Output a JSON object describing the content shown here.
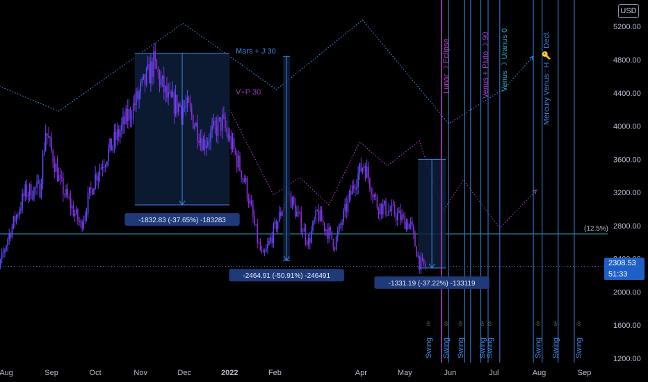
{
  "currency": "USD",
  "last_price": "2308.53",
  "countdown": "51:33",
  "level_label": "(12.5%)",
  "colors": {
    "background": "#000000",
    "candle_up": "#5b4dff",
    "candle_down": "#8d2bd6",
    "box_fill": "#0e1e3a",
    "measure_line": "#3f86e6",
    "vertical_line": "#2f6fc0",
    "eclipse_line": "#b43cc8",
    "dotted_blue": "#3f86e6",
    "dotted_purple": "#a23cc0",
    "level_line": "#2aa8b8"
  },
  "annotations": {
    "mars_j30": "Mars + J 30",
    "vp30": "V+P 30",
    "lunar_eclipse": "Lunar ☽ Eclipse",
    "venus_pluto": "Venus + Pluto ☽ 90",
    "venus_uranus": "Venus ☽ Uranus 0",
    "mercury_venus": "Mercury Venus : H 🔑 Decl.",
    "swing": "Swing",
    "swing_icon": "☃"
  },
  "measurements": [
    {
      "label": "-1832.83 (-37.65%) -183283"
    },
    {
      "label": "-2464.91 (-50.91%) -246491"
    },
    {
      "label": "-1331.19 (-37.22%) -133119"
    }
  ],
  "chart_data": {
    "type": "candlestick",
    "title": "",
    "xlabel": "",
    "ylabel": "",
    "ylim": [
      1150,
      5520
    ],
    "grid": false,
    "x_tick_labels": [
      "Aug",
      "Sep",
      "Oct",
      "Nov",
      "Dec",
      "2022",
      "Feb",
      "Apr",
      "May",
      "Jun",
      "Jul",
      "Aug",
      "Sep"
    ],
    "y_tick_labels": [
      "5200.00",
      "4800.00",
      "4400.00",
      "4000.00",
      "3600.00",
      "3200.00",
      "2800.00",
      "2400.00",
      "2000.00",
      "1600.00",
      "1200.00"
    ],
    "horizontal_levels": [
      2700,
      2308.53
    ],
    "close_anchors": [
      {
        "date": "2021-07-20",
        "close": 1850
      },
      {
        "date": "2021-08-02",
        "close": 2650
      },
      {
        "date": "2021-08-14",
        "close": 3200
      },
      {
        "date": "2021-08-24",
        "close": 3250
      },
      {
        "date": "2021-08-28",
        "close": 3950
      },
      {
        "date": "2021-09-07",
        "close": 3300
      },
      {
        "date": "2021-09-21",
        "close": 2800
      },
      {
        "date": "2021-10-01",
        "close": 3400
      },
      {
        "date": "2021-10-15",
        "close": 3850
      },
      {
        "date": "2021-10-26",
        "close": 4200
      },
      {
        "date": "2021-11-10",
        "close": 4750
      },
      {
        "date": "2021-11-20",
        "close": 4300
      },
      {
        "date": "2021-12-04",
        "close": 4200
      },
      {
        "date": "2021-12-14",
        "close": 3800
      },
      {
        "date": "2021-12-27",
        "close": 4050
      },
      {
        "date": "2022-01-05",
        "close": 3650
      },
      {
        "date": "2022-01-12",
        "close": 3300
      },
      {
        "date": "2022-01-21",
        "close": 2550
      },
      {
        "date": "2022-01-24",
        "close": 2400
      },
      {
        "date": "2022-02-07",
        "close": 3050
      },
      {
        "date": "2022-02-10",
        "close": 3200
      },
      {
        "date": "2022-02-24",
        "close": 2600
      },
      {
        "date": "2022-03-02",
        "close": 2950
      },
      {
        "date": "2022-03-14",
        "close": 2580
      },
      {
        "date": "2022-03-28",
        "close": 3350
      },
      {
        "date": "2022-04-03",
        "close": 3550
      },
      {
        "date": "2022-04-12",
        "close": 3050
      },
      {
        "date": "2022-04-24",
        "close": 2950
      },
      {
        "date": "2022-05-05",
        "close": 2800
      },
      {
        "date": "2022-05-11",
        "close": 2350
      },
      {
        "date": "2022-05-15",
        "close": 2308.53
      }
    ],
    "boxes": [
      {
        "from": "2021-10-28",
        "to": "2022-01-01",
        "high": 4880,
        "low": 3050,
        "label": "-1832.83 (-37.65%) -183283"
      },
      {
        "from": "2022-05-10",
        "to": "2022-05-29",
        "high": 3600,
        "low": 2290,
        "label": "-1331.19 (-37.22%) -133119"
      }
    ],
    "measure_arrows": [
      {
        "date": "2022-02-09",
        "from": 4840,
        "to": 2380,
        "label": "-2464.91 (-50.91%) -246491"
      }
    ],
    "vertical_lines": [
      {
        "date": "2022-05-26",
        "label": "Lunar ☽ Eclipse",
        "style": "eclipse"
      },
      {
        "date": "2022-05-31"
      },
      {
        "date": "2022-06-11"
      },
      {
        "date": "2022-06-15"
      },
      {
        "date": "2022-06-22",
        "label": "Venus + Pluto ☽ 90"
      },
      {
        "date": "2022-06-27"
      },
      {
        "date": "2022-07-05",
        "label": "Venus ☽ Uranus 0"
      },
      {
        "date": "2022-07-28"
      },
      {
        "date": "2022-08-03",
        "label": "Mercury Venus : H 🔑 Decl."
      },
      {
        "date": "2022-08-14"
      },
      {
        "date": "2022-08-25"
      }
    ],
    "swing_markers": [
      "2022-05-17",
      "2022-05-29",
      "2022-06-08",
      "2022-06-23",
      "2022-06-28",
      "2022-07-31",
      "2022-08-12",
      "2022-08-28"
    ],
    "projection_blue": [
      {
        "date": "2021-07-22",
        "value": 4520
      },
      {
        "date": "2021-09-06",
        "value": 4180
      },
      {
        "date": "2021-11-30",
        "value": 5240
      },
      {
        "date": "2022-02-02",
        "value": 4440
      },
      {
        "date": "2022-04-02",
        "value": 5280
      },
      {
        "date": "2022-05-31",
        "value": 4030
      },
      {
        "date": "2022-07-08",
        "value": 4450
      },
      {
        "date": "2022-07-28",
        "value": 4840
      }
    ],
    "projection_purple": [
      {
        "date": "2022-01-01",
        "value": 4200
      },
      {
        "date": "2022-01-31",
        "value": 3170
      },
      {
        "date": "2022-02-18",
        "value": 3380
      },
      {
        "date": "2022-03-10",
        "value": 3050
      },
      {
        "date": "2022-03-31",
        "value": 3810
      },
      {
        "date": "2022-04-19",
        "value": 3520
      },
      {
        "date": "2022-05-11",
        "value": 3820
      },
      {
        "date": "2022-05-27",
        "value": 2970
      },
      {
        "date": "2022-06-10",
        "value": 3350
      },
      {
        "date": "2022-07-05",
        "value": 2770
      },
      {
        "date": "2022-07-30",
        "value": 3230
      }
    ]
  }
}
